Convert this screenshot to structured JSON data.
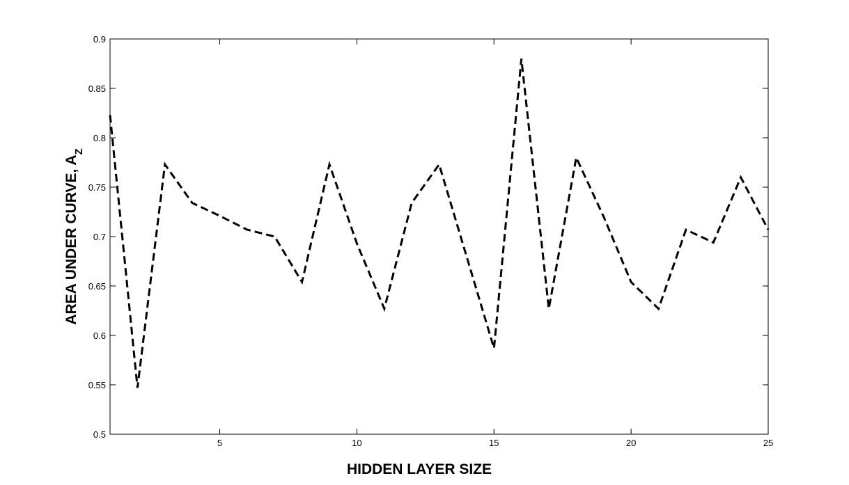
{
  "chart_data": {
    "type": "line",
    "xlabel": "HIDDEN LAYER SIZE",
    "ylabel_main": "AREA UNDER CURVE, A",
    "ylabel_sub": "Z",
    "xlim": [
      1,
      25
    ],
    "ylim": [
      0.5,
      0.9
    ],
    "xticks": [
      5,
      10,
      15,
      20,
      25
    ],
    "yticks": [
      0.5,
      0.55,
      0.6,
      0.65,
      0.7,
      0.75,
      0.8,
      0.85,
      0.9
    ],
    "grid": false,
    "line_style": "dashed",
    "line_color": "#000000",
    "series": [
      {
        "x": [
          1,
          2,
          3,
          4,
          5,
          6,
          7,
          8,
          9,
          10,
          11,
          12,
          13,
          14,
          15,
          16,
          17,
          18,
          19,
          20,
          21,
          22,
          23,
          24,
          25
        ],
        "values": [
          0.823,
          0.547,
          0.773,
          0.734,
          0.721,
          0.707,
          0.7,
          0.654,
          0.773,
          0.693,
          0.627,
          0.734,
          0.773,
          0.68,
          0.587,
          0.88,
          0.627,
          0.78,
          0.72,
          0.654,
          0.627,
          0.707,
          0.694,
          0.76,
          0.707
        ]
      }
    ]
  }
}
